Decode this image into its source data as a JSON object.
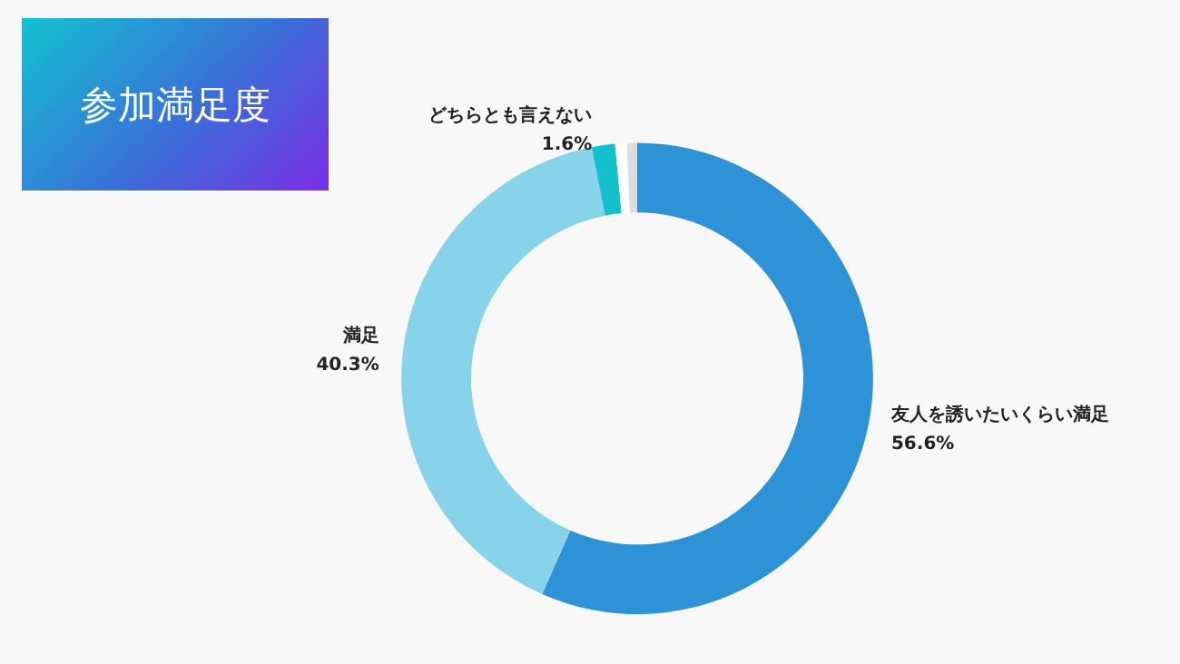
{
  "chart_data": {
    "type": "donut",
    "title": "参加満足度",
    "categories": [
      "友人を誘いたいくらい満足",
      "満足",
      "どちらとも言えない",
      null,
      null
    ],
    "values": [
      56.6,
      40.3,
      1.6,
      0.8,
      0.7
    ],
    "value_labels": [
      "56.6%",
      "40.3%",
      "1.6%",
      null,
      null
    ],
    "colors": [
      "#2e92d6",
      "#87d4ea",
      "#13c1cc",
      "#ffffff",
      "#dedede"
    ],
    "legend": false
  }
}
